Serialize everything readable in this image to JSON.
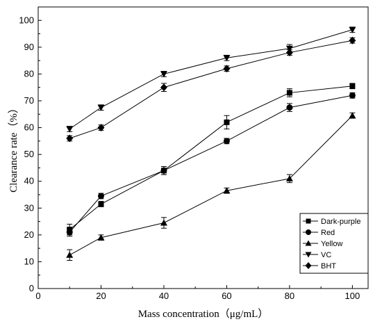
{
  "chart_data": {
    "type": "line",
    "title": "",
    "xlabel": "Mass concentration（μg/mL）",
    "ylabel": "Clearance rate（%）",
    "xlim": [
      0,
      105
    ],
    "ylim": [
      0,
      105
    ],
    "xticks": [
      0,
      20,
      40,
      60,
      80,
      100
    ],
    "yticks": [
      0,
      10,
      20,
      30,
      40,
      50,
      60,
      70,
      80,
      90,
      100
    ],
    "grid": false,
    "legend_position": "bottom-right",
    "x": [
      10,
      20,
      40,
      60,
      80,
      100
    ],
    "series": [
      {
        "name": "Dark-purple",
        "marker": "square",
        "values": [
          22,
          31.5,
          44,
          62,
          73,
          75.5
        ],
        "errors": [
          2,
          1,
          1.5,
          2.5,
          1.5,
          1
        ]
      },
      {
        "name": "Red",
        "marker": "circle",
        "values": [
          21,
          34.5,
          44,
          55,
          67.5,
          72
        ],
        "errors": [
          1.5,
          1,
          1.5,
          1,
          1.5,
          1
        ]
      },
      {
        "name": "Yellow",
        "marker": "triangle-up",
        "values": [
          12.5,
          19,
          24.5,
          36.5,
          41,
          64.5
        ],
        "errors": [
          2,
          1,
          2,
          1,
          1.5,
          1
        ]
      },
      {
        "name": "VC",
        "marker": "triangle-down",
        "values": [
          59.5,
          67.5,
          80,
          86,
          89.5,
          96.5
        ],
        "errors": [
          1,
          1,
          1,
          1,
          1.5,
          1
        ]
      },
      {
        "name": "BHT",
        "marker": "diamond",
        "values": [
          56,
          60,
          75,
          82,
          88,
          92.5
        ],
        "errors": [
          1,
          1,
          1.5,
          1,
          1,
          1
        ]
      }
    ]
  }
}
